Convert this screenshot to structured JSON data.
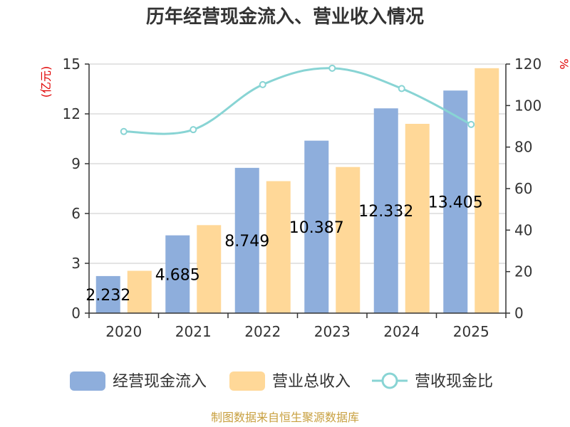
{
  "chart_data": {
    "type": "bar",
    "title": "历年经营现金流入、营业收入情况",
    "categories": [
      "2020",
      "2021",
      "2022",
      "2023",
      "2024",
      "2025"
    ],
    "y_left": {
      "unit": "(亿元)",
      "min": 0,
      "max": 15,
      "ticks": [
        0,
        3,
        6,
        9,
        12,
        15
      ]
    },
    "y_right": {
      "unit": "%",
      "min": 0,
      "max": 120,
      "ticks": [
        0,
        20,
        40,
        60,
        80,
        100,
        120
      ]
    },
    "series": [
      {
        "name": "经营现金流入",
        "kind": "bar",
        "axis": "left",
        "color": "#8eaedc",
        "values": [
          2.232,
          4.685,
          8.749,
          10.387,
          12.332,
          13.405
        ],
        "labels": [
          "2.232",
          "4.685",
          "8.749",
          "10.387",
          "12.332",
          "13.405"
        ]
      },
      {
        "name": "营业总收入",
        "kind": "bar",
        "axis": "left",
        "color": "#ffd898",
        "values": [
          2.55,
          5.3,
          7.95,
          8.8,
          11.4,
          14.75
        ]
      },
      {
        "name": "营收现金比",
        "kind": "line",
        "axis": "right",
        "color": "#88d4d4",
        "values": [
          87.5,
          88.4,
          110.1,
          118.0,
          108.2,
          90.9
        ]
      }
    ],
    "grid": true,
    "legend": "bottom"
  },
  "footer": {
    "source": "制图数据来自恒生聚源数据库"
  }
}
